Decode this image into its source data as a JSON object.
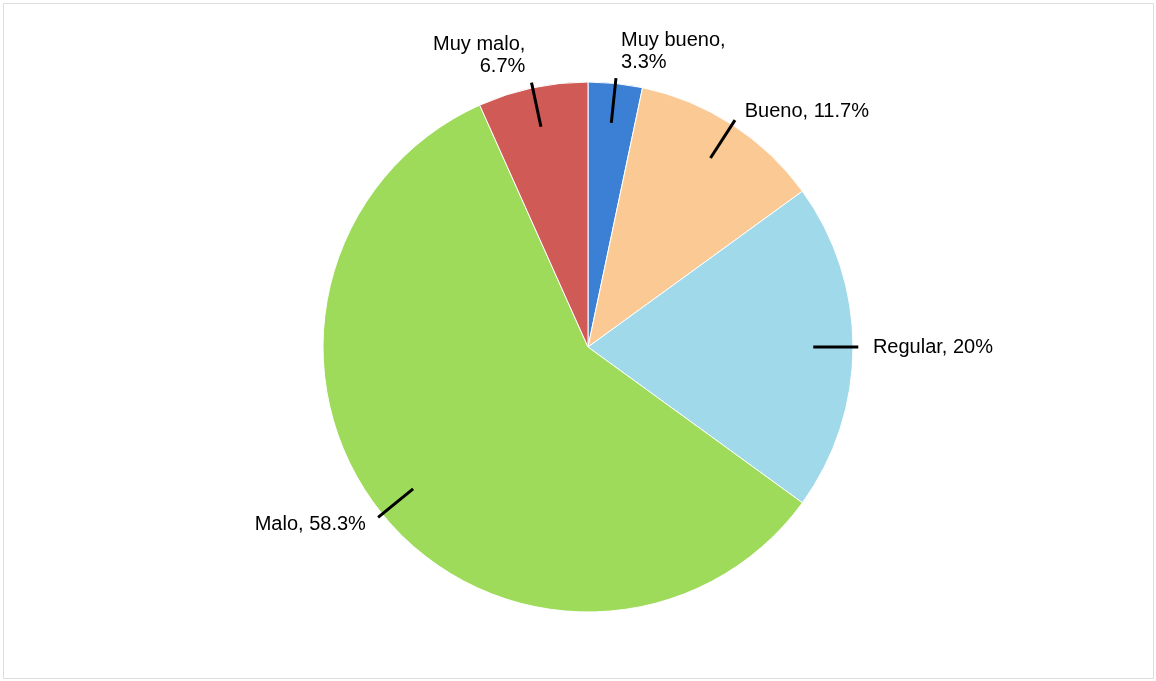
{
  "chart_data": {
    "type": "pie",
    "categories": [
      "Muy bueno",
      "Bueno",
      "Regular",
      "Malo",
      "Muy malo"
    ],
    "values": [
      3.3,
      11.7,
      20,
      58.3,
      6.7
    ],
    "colors": [
      "#3c80d6",
      "#fbc994",
      "#9fd9ea",
      "#9fdb5b",
      "#d05b56"
    ],
    "value_labels": [
      ", 3.3%",
      ", 11.7%",
      ", 20%",
      ", 58.3%",
      ", 6.7%"
    ]
  }
}
